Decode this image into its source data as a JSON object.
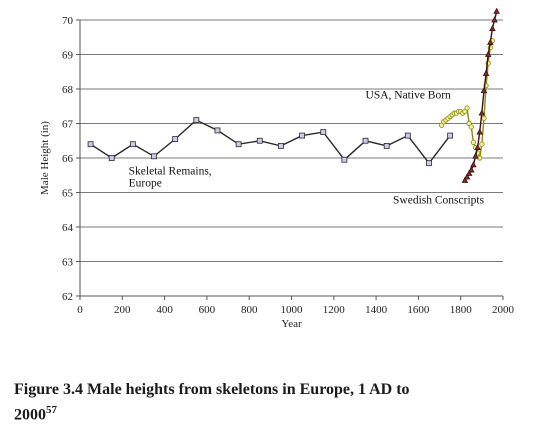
{
  "chart_data": {
    "type": "line",
    "xlabel": "Year",
    "ylabel": "Male Height (in)",
    "xlim": [
      0,
      2000
    ],
    "ylim": [
      62,
      70
    ],
    "x_ticks": [
      0,
      200,
      400,
      600,
      800,
      1000,
      1200,
      1400,
      1600,
      1800,
      2000
    ],
    "y_ticks": [
      62,
      63,
      64,
      65,
      66,
      67,
      68,
      69,
      70
    ],
    "grid": "horizontal",
    "series": [
      {
        "name": "Skeletal Remains, Europe",
        "color": "#2a2a2a",
        "marker": "square",
        "marker_fill": "#c9cbea",
        "x": [
          50,
          150,
          250,
          350,
          450,
          550,
          650,
          750,
          850,
          950,
          1050,
          1150,
          1250,
          1350,
          1450,
          1550,
          1650,
          1750
        ],
        "y": [
          66.4,
          66.0,
          66.4,
          66.05,
          66.55,
          67.1,
          66.8,
          66.4,
          66.5,
          66.35,
          66.65,
          66.75,
          65.95,
          66.5,
          66.35,
          66.65,
          65.85,
          66.65
        ]
      },
      {
        "name": "USA, Native Born",
        "color": "#8a8a10",
        "marker": "circle",
        "marker_fill": "#f2f29a",
        "x": [
          1710,
          1720,
          1730,
          1740,
          1750,
          1760,
          1770,
          1780,
          1790,
          1800,
          1810,
          1820,
          1830,
          1840,
          1850,
          1860,
          1870,
          1880,
          1890,
          1900,
          1910,
          1920,
          1930,
          1940,
          1950
        ],
        "y": [
          66.95,
          67.05,
          67.1,
          67.15,
          67.2,
          67.25,
          67.3,
          67.3,
          67.35,
          67.35,
          67.3,
          67.35,
          67.45,
          67.0,
          66.9,
          66.45,
          66.3,
          66.15,
          66.0,
          66.4,
          67.15,
          68.1,
          68.75,
          69.2,
          69.4
        ]
      },
      {
        "name": "Swedish Conscripts",
        "color": "#3a1010",
        "marker": "triangle",
        "marker_fill": "#8a2a2a",
        "x": [
          1820,
          1830,
          1840,
          1850,
          1860,
          1870,
          1880,
          1890,
          1900,
          1910,
          1920,
          1930,
          1940,
          1950,
          1960,
          1970
        ],
        "y": [
          65.35,
          65.45,
          65.55,
          65.65,
          65.8,
          66.05,
          66.3,
          66.75,
          67.3,
          67.95,
          68.45,
          69.0,
          69.35,
          69.75,
          70.0,
          70.25
        ]
      }
    ],
    "annotations": [
      {
        "text": "Skeletal Remains,",
        "x": 230,
        "y": 65.52
      },
      {
        "text": "Europe",
        "x": 230,
        "y": 65.18
      },
      {
        "text": "USA, Native Born",
        "x": 1350,
        "y": 67.72
      },
      {
        "text": "Swedish Conscripts",
        "x": 1480,
        "y": 64.68
      }
    ]
  },
  "caption": {
    "text": "Figure 3.4 Male heights from skeletons in Europe, 1 AD to",
    "line2": "2000",
    "note": "57"
  }
}
